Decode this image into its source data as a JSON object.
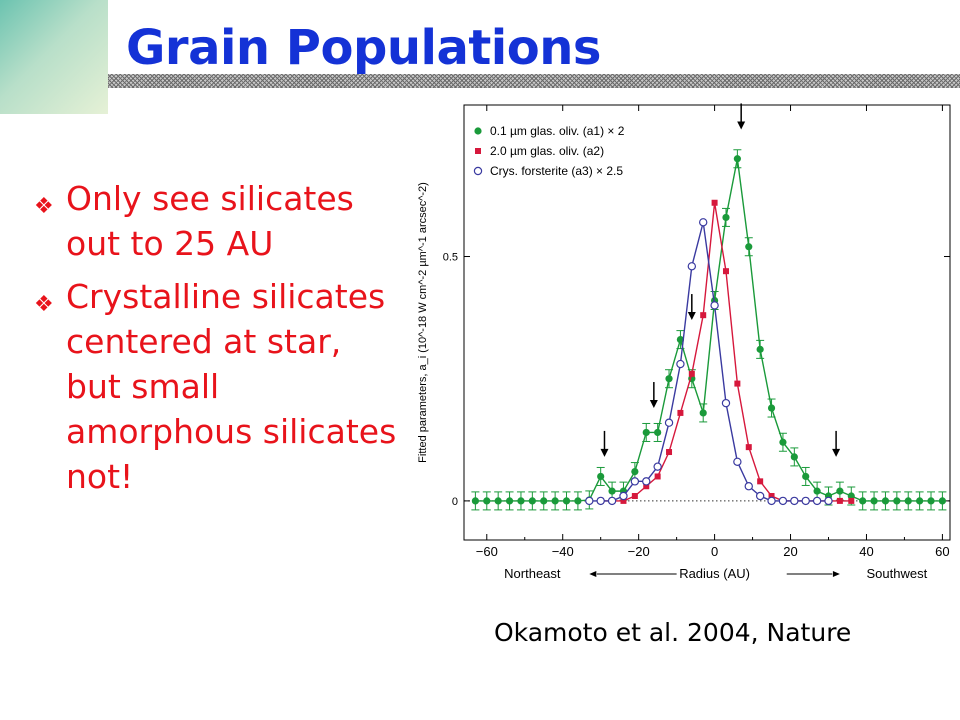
{
  "slide": {
    "title": "Grain Populations",
    "bullets": [
      "Only see silicates out to 25 AU",
      "Crystalline silicates centered at star, but small amorphous silicates not!"
    ],
    "citation": "Okamoto et al. 2004, Nature"
  },
  "colors": {
    "title": "#1432d6",
    "bullets": "#e8131b"
  },
  "chart_data": {
    "type": "scatter",
    "title": "",
    "xlabel": "Radius (AU)",
    "xlabel_left": "Northeast",
    "xlabel_right": "Southwest",
    "ylabel": "Fitted parameters, a_i (10^-18 W cm^-2 µm^-1 arcsec^-2)",
    "xlim": [
      -66,
      62
    ],
    "ylim": [
      -0.08,
      0.81
    ],
    "x_ticks": [
      -60,
      -40,
      -20,
      0,
      20,
      40,
      60
    ],
    "y_ticks": [
      0,
      0.5
    ],
    "x_tick_labels": [
      "−60",
      "−40",
      "−20",
      "0",
      "20",
      "40",
      "60"
    ],
    "y_tick_labels": [
      "0",
      "0.5"
    ],
    "zero_line": "dotted",
    "legend_position": "top-left",
    "arrows_at_x": [
      -29,
      -16,
      -6,
      7,
      32
    ],
    "series": [
      {
        "name": "0.1 µm glas. oliv. (a1) × 2",
        "color": "#1a9a3a",
        "marker": "filled-circle",
        "error_bars": true,
        "x": [
          -63,
          -60,
          -57,
          -54,
          -51,
          -48,
          -45,
          -42,
          -39,
          -36,
          -33,
          -30,
          -27,
          -24,
          -21,
          -18,
          -15,
          -12,
          -9,
          -6,
          -3,
          0,
          3,
          6,
          9,
          12,
          15,
          18,
          21,
          24,
          27,
          30,
          33,
          36,
          39,
          42,
          45,
          48,
          51,
          54,
          57,
          60
        ],
        "y": [
          0,
          0,
          0,
          0,
          0,
          0,
          0,
          0,
          0,
          0,
          0.002,
          0.05,
          0.02,
          0.02,
          0.06,
          0.14,
          0.14,
          0.25,
          0.33,
          0.25,
          0.18,
          0.41,
          0.58,
          0.7,
          0.52,
          0.31,
          0.19,
          0.12,
          0.09,
          0.05,
          0.02,
          0.01,
          0.02,
          0.01,
          0,
          0,
          0,
          0,
          0,
          0,
          0,
          0
        ]
      },
      {
        "name": "2.0 µm glas. oliv. (a2)",
        "color": "#d6183c",
        "marker": "filled-square",
        "error_bars": false,
        "x": [
          -30,
          -27,
          -24,
          -21,
          -18,
          -15,
          -12,
          -9,
          -6,
          -3,
          0,
          3,
          6,
          9,
          12,
          15,
          18,
          21,
          24,
          27,
          30,
          33,
          36
        ],
        "y": [
          0,
          0,
          0,
          0.01,
          0.03,
          0.05,
          0.1,
          0.18,
          0.26,
          0.38,
          0.61,
          0.47,
          0.24,
          0.11,
          0.04,
          0.01,
          0,
          0,
          0,
          0,
          0,
          0,
          0
        ]
      },
      {
        "name": "Crys. forsterite (a3) × 2.5",
        "color": "#3a3aa0",
        "marker": "open-circle",
        "error_bars": false,
        "x": [
          -33,
          -30,
          -27,
          -24,
          -21,
          -18,
          -15,
          -12,
          -9,
          -6,
          -3,
          0,
          3,
          6,
          9,
          12,
          15,
          18,
          21,
          24,
          27,
          30
        ],
        "y": [
          0,
          0,
          0,
          0.01,
          0.04,
          0.04,
          0.07,
          0.16,
          0.28,
          0.48,
          0.57,
          0.4,
          0.2,
          0.08,
          0.03,
          0.01,
          0,
          0,
          0,
          0,
          0,
          0
        ]
      }
    ]
  }
}
